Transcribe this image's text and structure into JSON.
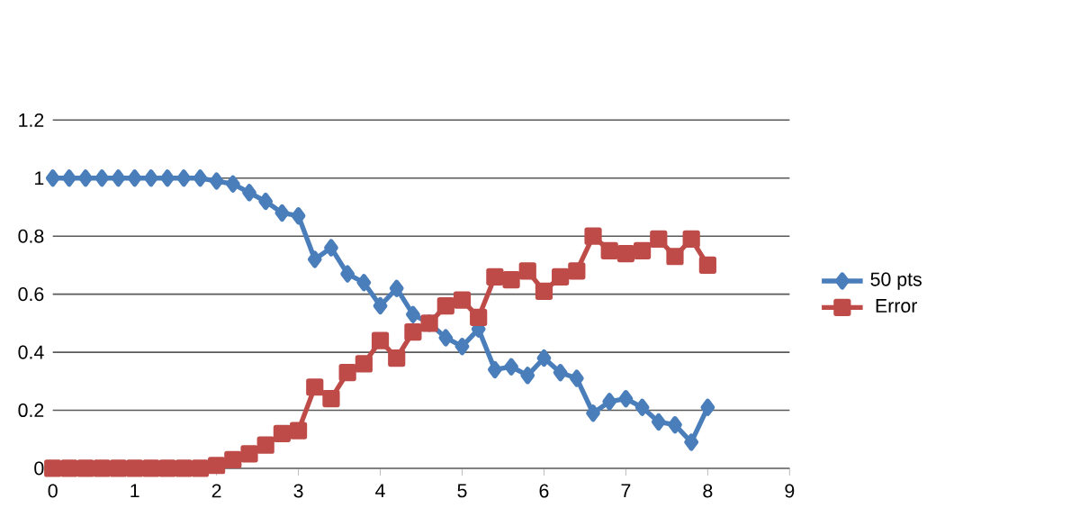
{
  "chart_data": {
    "type": "line",
    "x": [
      0,
      0.2,
      0.4,
      0.6,
      0.8,
      1,
      1.2,
      1.4,
      1.6,
      1.8,
      2,
      2.2,
      2.4,
      2.6,
      2.8,
      3,
      3.2,
      3.4,
      3.6,
      3.8,
      4,
      4.2,
      4.4,
      4.6,
      4.8,
      5,
      5.2,
      5.4,
      5.6,
      5.8,
      6,
      6.2,
      6.4,
      6.6,
      6.8,
      7,
      7.2,
      7.4,
      7.6,
      7.8,
      8
    ],
    "series": [
      {
        "name": "50 pts",
        "color": "#4a7ebb",
        "marker": "diamond",
        "values": [
          1,
          1,
          1,
          1,
          1,
          1,
          1,
          1,
          1,
          1,
          0.99,
          0.98,
          0.95,
          0.92,
          0.88,
          0.87,
          0.72,
          0.76,
          0.67,
          0.64,
          0.56,
          0.62,
          0.53,
          0.5,
          0.45,
          0.42,
          0.48,
          0.34,
          0.35,
          0.32,
          0.38,
          0.33,
          0.31,
          0.19,
          0.23,
          0.24,
          0.21,
          0.16,
          0.15,
          0.09,
          0.21
        ]
      },
      {
        "name": "Error",
        "color": "#be4b48",
        "marker": "square",
        "values": [
          0,
          0,
          0,
          0,
          0,
          0,
          0,
          0,
          0,
          0,
          0.01,
          0.03,
          0.05,
          0.08,
          0.12,
          0.13,
          0.28,
          0.24,
          0.33,
          0.36,
          0.44,
          0.38,
          0.47,
          0.5,
          0.56,
          0.58,
          0.52,
          0.66,
          0.65,
          0.68,
          0.61,
          0.66,
          0.68,
          0.8,
          0.75,
          0.74,
          0.75,
          0.79,
          0.73,
          0.79,
          0.7
        ]
      }
    ],
    "xlim": [
      0,
      9
    ],
    "xticks": [
      0,
      1,
      2,
      3,
      4,
      5,
      6,
      7,
      8,
      9
    ],
    "ylim": [
      0,
      1.2
    ],
    "yticks": [
      0,
      0.2,
      0.4,
      0.6,
      0.8,
      1,
      1.2
    ],
    "grid": "y",
    "legend": "right",
    "line_style": "solid"
  }
}
